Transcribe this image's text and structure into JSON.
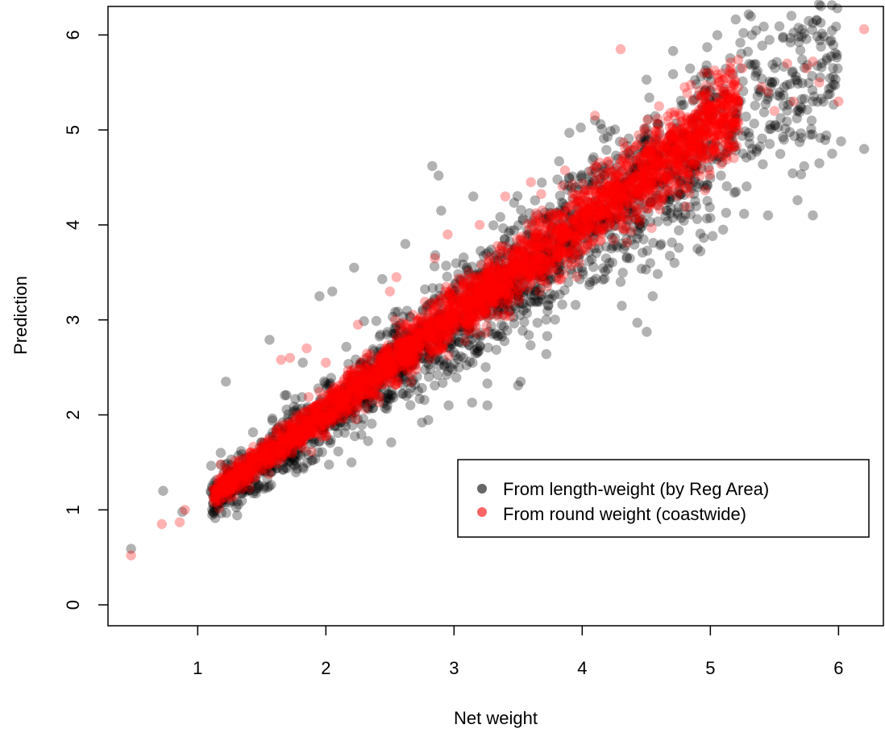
{
  "chart_data": {
    "type": "scatter",
    "xlabel": "Net weight",
    "ylabel": "Prediction",
    "xlim": [
      0.3,
      6.35
    ],
    "ylim": [
      -0.22,
      6.3
    ],
    "xticks": [
      "1",
      "2",
      "3",
      "4",
      "5",
      "6"
    ],
    "yticks": [
      "0",
      "1",
      "2",
      "3",
      "4",
      "5",
      "6"
    ],
    "grid": false,
    "legend": {
      "position": "bottom-right",
      "box": true
    },
    "series": [
      {
        "name": "From length-weight (by Reg Area)",
        "color": "#000000",
        "marker": "filled-circle",
        "alpha": 0.35,
        "relationship": "approximately y = 0.98x, spread increasing with x (about ±0.45 at x≈5)",
        "x_range": [
          0.48,
          6.2
        ],
        "points": [
          [
            0.48,
            0.59
          ],
          [
            0.73,
            1.2
          ],
          [
            0.88,
            0.98
          ],
          [
            1.18,
            1.6
          ],
          [
            1.22,
            2.35
          ],
          [
            1.56,
            2.79
          ],
          [
            1.75,
            1.48
          ],
          [
            1.82,
            2.55
          ],
          [
            1.95,
            3.25
          ],
          [
            2.05,
            3.3
          ],
          [
            2.2,
            1.5
          ],
          [
            2.22,
            3.55
          ],
          [
            2.44,
            3.43
          ],
          [
            2.62,
            3.8
          ],
          [
            2.75,
            1.92
          ],
          [
            2.83,
            4.62
          ],
          [
            2.88,
            4.52
          ],
          [
            2.9,
            4.15
          ],
          [
            3.15,
            4.3
          ],
          [
            3.26,
            2.1
          ],
          [
            3.5,
            2.31
          ],
          [
            3.52,
            2.35
          ],
          [
            3.72,
            2.64
          ],
          [
            3.82,
            4.67
          ],
          [
            3.9,
            4.97
          ],
          [
            4.1,
            5.1
          ],
          [
            4.3,
            3.4
          ],
          [
            4.43,
            2.97
          ],
          [
            4.55,
            3.25
          ],
          [
            4.72,
            3.6
          ],
          [
            4.9,
            3.75
          ],
          [
            5.1,
            3.95
          ],
          [
            5.2,
            4.35
          ],
          [
            5.45,
            4.1
          ],
          [
            5.68,
            4.26
          ],
          [
            5.8,
            4.1
          ],
          [
            5.85,
            4.65
          ],
          [
            5.95,
            4.75
          ],
          [
            6.2,
            4.8
          ],
          [
            6.02,
            4.88
          ],
          [
            5.78,
            4.95
          ],
          [
            5.3,
            4.97
          ]
        ]
      },
      {
        "name": "From round weight (coastwide)",
        "color": "#ff0000",
        "marker": "filled-circle",
        "alpha": 0.35,
        "relationship": "approximately y = 0.98x + 0.05, tighter spread (about ±0.25 at x≈5)",
        "x_range": [
          0.48,
          6.2
        ],
        "points": [
          [
            0.48,
            0.52
          ],
          [
            0.72,
            0.85
          ],
          [
            0.86,
            0.87
          ],
          [
            0.9,
            1.0
          ],
          [
            1.18,
            1.48
          ],
          [
            1.65,
            2.58
          ],
          [
            1.72,
            2.6
          ],
          [
            1.85,
            2.7
          ],
          [
            2.0,
            2.55
          ],
          [
            2.25,
            2.95
          ],
          [
            2.5,
            3.3
          ],
          [
            2.55,
            3.45
          ],
          [
            2.85,
            3.65
          ],
          [
            2.95,
            3.9
          ],
          [
            3.2,
            4.0
          ],
          [
            3.4,
            4.3
          ],
          [
            3.6,
            4.45
          ],
          [
            4.1,
            5.15
          ],
          [
            4.3,
            5.85
          ],
          [
            4.6,
            5.25
          ],
          [
            4.8,
            5.45
          ],
          [
            4.95,
            5.6
          ],
          [
            5.15,
            5.62
          ],
          [
            5.25,
            5.65
          ],
          [
            5.45,
            5.4
          ],
          [
            5.6,
            5.7
          ],
          [
            5.65,
            5.3
          ],
          [
            5.75,
            5.65
          ],
          [
            5.85,
            5.5
          ],
          [
            5.8,
            5.72
          ],
          [
            6.0,
            5.3
          ],
          [
            6.2,
            6.06
          ],
          [
            5.5,
            5.2
          ],
          [
            5.4,
            5.45
          ]
        ]
      }
    ]
  }
}
